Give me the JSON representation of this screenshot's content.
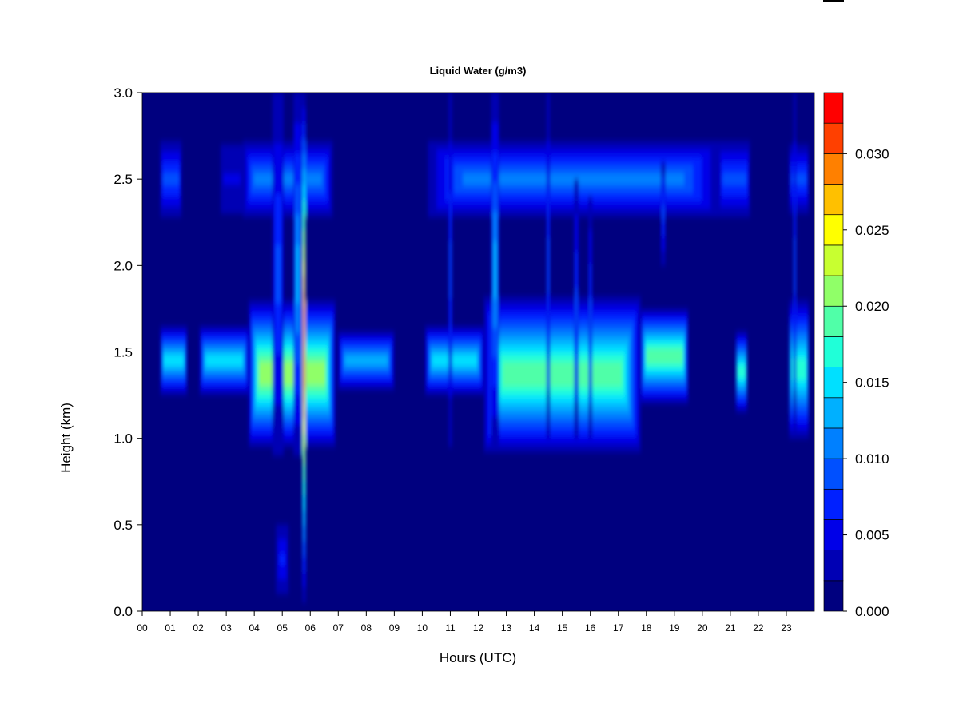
{
  "chart_data": {
    "type": "heatmap",
    "title": "Liquid Water (g/m3)",
    "xlabel": "Hours (UTC)",
    "ylabel": "Height (km)",
    "x_tick_labels": [
      "00",
      "01",
      "02",
      "03",
      "04",
      "05",
      "06",
      "07",
      "08",
      "09",
      "10",
      "11",
      "12",
      "13",
      "14",
      "15",
      "16",
      "17",
      "18",
      "19",
      "20",
      "21",
      "22",
      "23"
    ],
    "y_ticks": [
      0.0,
      0.5,
      1.0,
      1.5,
      2.0,
      2.5,
      3.0
    ],
    "y_tick_labels": [
      "0.0",
      "0.5",
      "1.0",
      "1.5",
      "2.0",
      "2.5",
      "3.0"
    ],
    "xlim": [
      0,
      24
    ],
    "ylim": [
      0,
      3.0
    ],
    "colorbar": {
      "ticks": [
        0.0,
        0.005,
        0.01,
        0.015,
        0.02,
        0.025,
        0.03
      ],
      "tick_labels": [
        "0.000",
        "0.005",
        "0.010",
        "0.015",
        "0.020",
        "0.025",
        "0.030"
      ],
      "levels": [
        0.0,
        0.002,
        0.004,
        0.006,
        0.008,
        0.01,
        0.012,
        0.014,
        0.016,
        0.018,
        0.02,
        0.022,
        0.024,
        0.026,
        0.028,
        0.03,
        0.032,
        0.034
      ],
      "colors": [
        "#00007f",
        "#0000b4",
        "#0000e8",
        "#0020ff",
        "#0050ff",
        "#0080ff",
        "#00b0ff",
        "#00e0ff",
        "#20ffd8",
        "#50ffa8",
        "#90ff68",
        "#c8ff30",
        "#ffff00",
        "#ffc000",
        "#ff8000",
        "#ff4000",
        "#ff0000",
        "#c00000",
        "#7f0000"
      ]
    },
    "cloud_features": [
      {
        "type": "layer",
        "x_start": 0.65,
        "x_end": 1.4,
        "y_bottom": 2.28,
        "y_top": 2.72,
        "peak": 0.0095
      },
      {
        "type": "layer",
        "x_start": 2.8,
        "x_end": 3.6,
        "y_bottom": 2.3,
        "y_top": 2.7,
        "peak": 0.005
      },
      {
        "type": "layer",
        "x_start": 3.6,
        "x_end": 6.8,
        "y_bottom": 2.28,
        "y_top": 2.72,
        "peak": 0.0105
      },
      {
        "type": "layer",
        "x_start": 10.2,
        "x_end": 20.6,
        "y_bottom": 2.28,
        "y_top": 2.72,
        "peak": 0.0105
      },
      {
        "type": "layer",
        "x_start": 20.6,
        "x_end": 21.7,
        "y_bottom": 2.28,
        "y_top": 2.72,
        "peak": 0.009
      },
      {
        "type": "layer",
        "x_start": 23.1,
        "x_end": 23.8,
        "y_bottom": 2.3,
        "y_top": 2.7,
        "peak": 0.009
      },
      {
        "type": "layer",
        "x_start": 0.65,
        "x_end": 1.6,
        "y_bottom": 1.25,
        "y_top": 1.65,
        "peak": 0.014
      },
      {
        "type": "layer",
        "x_start": 2.05,
        "x_end": 3.8,
        "y_bottom": 1.25,
        "y_top": 1.65,
        "peak": 0.015
      },
      {
        "type": "layer",
        "x_start": 3.8,
        "x_end": 6.9,
        "y_bottom": 0.95,
        "y_top": 1.8,
        "peak": 0.02
      },
      {
        "type": "layer",
        "x_start": 7.0,
        "x_end": 9.0,
        "y_bottom": 1.28,
        "y_top": 1.62,
        "peak": 0.013
      },
      {
        "type": "layer",
        "x_start": 10.1,
        "x_end": 12.2,
        "y_bottom": 1.25,
        "y_top": 1.65,
        "peak": 0.015
      },
      {
        "type": "layer",
        "x_start": 12.2,
        "x_end": 17.8,
        "y_bottom": 0.92,
        "y_top": 1.82,
        "peak": 0.019
      },
      {
        "type": "layer",
        "x_start": 17.8,
        "x_end": 19.5,
        "y_bottom": 1.2,
        "y_top": 1.75,
        "peak": 0.018
      },
      {
        "type": "layer",
        "x_start": 21.2,
        "x_end": 21.6,
        "y_bottom": 1.15,
        "y_top": 1.62,
        "peak": 0.016
      },
      {
        "type": "layer",
        "x_start": 23.1,
        "x_end": 23.8,
        "y_bottom": 1.0,
        "y_top": 1.8,
        "peak": 0.016
      },
      {
        "type": "column",
        "x_center": 5.78,
        "width": 0.12,
        "y_bottom": 0.05,
        "y_top": 3.0,
        "peak": 0.031
      },
      {
        "type": "column",
        "x_center": 5.55,
        "width": 0.3,
        "y_bottom": 0.9,
        "y_top": 3.0,
        "peak": 0.013
      },
      {
        "type": "column",
        "x_center": 4.85,
        "width": 0.4,
        "y_bottom": 0.9,
        "y_top": 3.0,
        "peak": 0.008
      },
      {
        "type": "column",
        "x_center": 12.6,
        "width": 0.28,
        "y_bottom": 0.95,
        "y_top": 3.0,
        "peak": 0.013
      },
      {
        "type": "column",
        "x_center": 11.0,
        "width": 0.12,
        "y_bottom": 0.95,
        "y_top": 3.0,
        "peak": 0.009
      },
      {
        "type": "column",
        "x_center": 14.5,
        "width": 0.12,
        "y_bottom": 1.0,
        "y_top": 3.0,
        "peak": 0.009
      },
      {
        "type": "column",
        "x_center": 15.5,
        "width": 0.15,
        "y_bottom": 1.0,
        "y_top": 2.5,
        "peak": 0.009
      },
      {
        "type": "column",
        "x_center": 16.0,
        "width": 0.12,
        "y_bottom": 1.0,
        "y_top": 2.4,
        "peak": 0.008
      },
      {
        "type": "column",
        "x_center": 18.6,
        "width": 0.15,
        "y_bottom": 2.0,
        "y_top": 2.6,
        "peak": 0.009
      },
      {
        "type": "column",
        "x_center": 23.3,
        "width": 0.1,
        "y_bottom": 1.0,
        "y_top": 3.0,
        "peak": 0.008
      },
      {
        "type": "patch",
        "x_center": 5.0,
        "width": 0.45,
        "y_bottom": 0.1,
        "y_top": 0.5,
        "peak": 0.007
      }
    ]
  }
}
